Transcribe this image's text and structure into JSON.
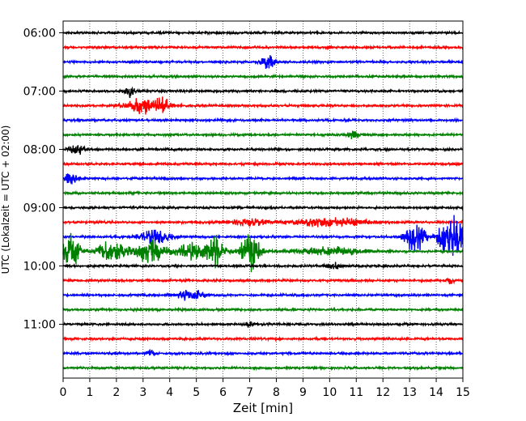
{
  "chart_data": {
    "type": "line",
    "title": "",
    "xlabel": "Zeit  [min]",
    "ylabel": "UTC (Lokalzeit = UTC + 02:00)",
    "xlim": [
      0,
      15
    ],
    "x_ticks": [
      "0",
      "1",
      "2",
      "3",
      "4",
      "5",
      "6",
      "7",
      "8",
      "9",
      "10",
      "11",
      "12",
      "13",
      "14",
      "15"
    ],
    "y_ticks": [
      "06:00",
      "07:00",
      "08:00",
      "09:00",
      "10:00",
      "11:00"
    ],
    "grid": "vertical-dotted",
    "trace_colors": [
      "#000000",
      "#ff0000",
      "#0000ff",
      "#008000"
    ],
    "traces": [
      {
        "start": "06:00",
        "color": "#000000",
        "events": []
      },
      {
        "start": "06:15",
        "color": "#ff0000",
        "events": []
      },
      {
        "start": "06:30",
        "color": "#0000ff",
        "events": [
          {
            "t": 7.7,
            "amp": 0.6,
            "dur": 0.5
          }
        ]
      },
      {
        "start": "06:45",
        "color": "#008000",
        "events": []
      },
      {
        "start": "07:00",
        "color": "#000000",
        "events": [
          {
            "t": 2.5,
            "amp": 0.5,
            "dur": 0.4
          }
        ]
      },
      {
        "start": "07:15",
        "color": "#ff0000",
        "events": [
          {
            "t": 3.1,
            "amp": 0.6,
            "dur": 1.4
          },
          {
            "t": 3.8,
            "amp": 0.4,
            "dur": 0.5
          }
        ]
      },
      {
        "start": "07:30",
        "color": "#0000ff",
        "events": []
      },
      {
        "start": "07:45",
        "color": "#008000",
        "events": [
          {
            "t": 10.9,
            "amp": 0.3,
            "dur": 0.4
          }
        ]
      },
      {
        "start": "08:00",
        "color": "#000000",
        "events": [
          {
            "t": 0.5,
            "amp": 0.45,
            "dur": 0.5
          }
        ]
      },
      {
        "start": "08:15",
        "color": "#ff0000",
        "events": []
      },
      {
        "start": "08:30",
        "color": "#0000ff",
        "events": [
          {
            "t": 0.3,
            "amp": 0.45,
            "dur": 0.6
          }
        ]
      },
      {
        "start": "08:45",
        "color": "#008000",
        "events": []
      },
      {
        "start": "09:00",
        "color": "#000000",
        "events": []
      },
      {
        "start": "09:15",
        "color": "#ff0000",
        "events": [
          {
            "t": 10.0,
            "amp": 0.35,
            "dur": 2.5
          },
          {
            "t": 7.0,
            "amp": 0.25,
            "dur": 1.5
          }
        ]
      },
      {
        "start": "09:30",
        "color": "#0000ff",
        "events": [
          {
            "t": 3.5,
            "amp": 0.5,
            "dur": 1.2
          },
          {
            "t": 13.2,
            "amp": 1.2,
            "dur": 0.7
          },
          {
            "t": 14.6,
            "amp": 2.0,
            "dur": 0.9
          }
        ]
      },
      {
        "start": "09:45",
        "color": "#008000",
        "events": [
          {
            "t": 0.3,
            "amp": 1.3,
            "dur": 0.7
          },
          {
            "t": 1.8,
            "amp": 0.8,
            "dur": 1.0
          },
          {
            "t": 3.3,
            "amp": 0.9,
            "dur": 1.2
          },
          {
            "t": 4.8,
            "amp": 0.6,
            "dur": 1.0
          },
          {
            "t": 5.7,
            "amp": 1.2,
            "dur": 0.7
          },
          {
            "t": 7.0,
            "amp": 1.6,
            "dur": 0.7
          },
          {
            "t": 10.0,
            "amp": 0.35,
            "dur": 2.5
          }
        ]
      },
      {
        "start": "10:00",
        "color": "#000000",
        "events": [
          {
            "t": 10.2,
            "amp": 0.25,
            "dur": 0.6
          }
        ]
      },
      {
        "start": "10:15",
        "color": "#ff0000",
        "events": [
          {
            "t": 14.5,
            "amp": 0.3,
            "dur": 0.3
          }
        ]
      },
      {
        "start": "10:30",
        "color": "#0000ff",
        "events": [
          {
            "t": 4.8,
            "amp": 0.4,
            "dur": 1.0
          }
        ]
      },
      {
        "start": "10:45",
        "color": "#008000",
        "events": []
      },
      {
        "start": "11:00",
        "color": "#000000",
        "events": [
          {
            "t": 7.0,
            "amp": 0.25,
            "dur": 0.3
          }
        ]
      },
      {
        "start": "11:15",
        "color": "#ff0000",
        "events": []
      },
      {
        "start": "11:30",
        "color": "#0000ff",
        "events": [
          {
            "t": 3.3,
            "amp": 0.25,
            "dur": 0.3
          }
        ]
      },
      {
        "start": "11:45",
        "color": "#008000",
        "events": []
      }
    ]
  }
}
